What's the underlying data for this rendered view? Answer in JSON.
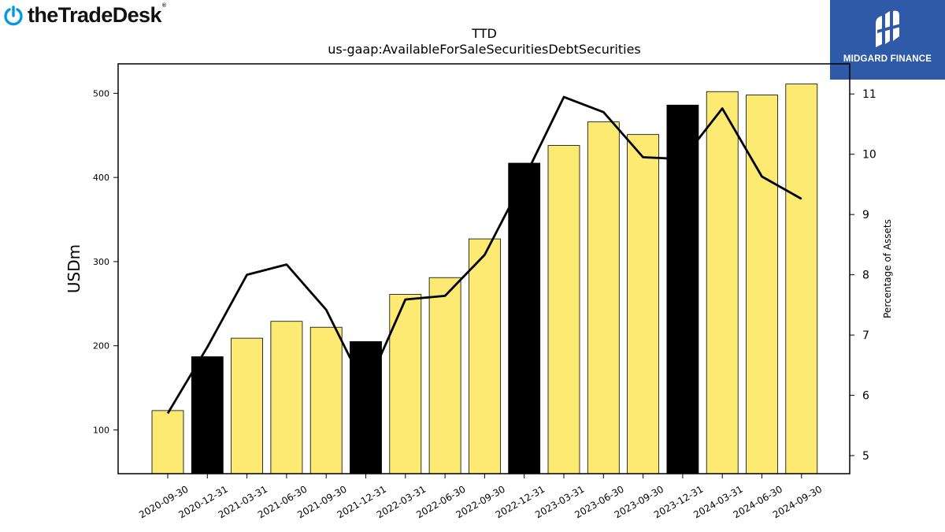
{
  "branding": {
    "logo_text": "theTradeDesk",
    "logo_mark": "®",
    "logo_icon": "power-icon",
    "logo_color": "#0099e5",
    "badge_text": "MIDGARD FINANCE",
    "badge_color": "#2e5aa8"
  },
  "chart_data": {
    "type": "bar",
    "title": "TTD",
    "subtitle": "us-gaap:AvailableForSaleSecuritiesDebtSecurities",
    "ylabel": "USDm",
    "y2label": "Percentage of Assets",
    "categories": [
      "2020-09-30",
      "2020-12-31",
      "2021-03-31",
      "2021-06-30",
      "2021-09-30",
      "2021-12-31",
      "2022-03-31",
      "2022-06-30",
      "2022-09-30",
      "2022-12-31",
      "2023-03-31",
      "2023-06-30",
      "2023-09-30",
      "2023-12-31",
      "2024-03-31",
      "2024-06-30",
      "2024-09-30"
    ],
    "series": [
      {
        "kind": "bar",
        "axis": "left",
        "values": [
          123,
          187,
          209,
          229,
          222,
          205,
          261,
          281,
          327,
          417,
          438,
          466,
          451,
          486,
          502,
          498,
          511
        ],
        "colors": [
          "#fdea72",
          "#000000",
          "#fdea72",
          "#fdea72",
          "#fdea72",
          "#000000",
          "#fdea72",
          "#fdea72",
          "#fdea72",
          "#000000",
          "#fdea72",
          "#fdea72",
          "#fdea72",
          "#000000",
          "#fdea72",
          "#fdea72",
          "#fdea72"
        ]
      },
      {
        "kind": "line",
        "axis": "right",
        "color": "#000000",
        "values": [
          5.7,
          6.8,
          8.0,
          8.17,
          7.42,
          6.1,
          7.59,
          7.65,
          8.33,
          9.6,
          10.95,
          10.7,
          9.95,
          9.92,
          10.76,
          9.63,
          9.26
        ]
      }
    ],
    "ylim": [
      48,
      535
    ],
    "yticks": [
      100,
      200,
      300,
      400,
      500
    ],
    "y2lim": [
      4.7,
      11.5
    ],
    "y2ticks": [
      5,
      6,
      7,
      8,
      9,
      10,
      11
    ],
    "grid": false,
    "legend": "none"
  }
}
